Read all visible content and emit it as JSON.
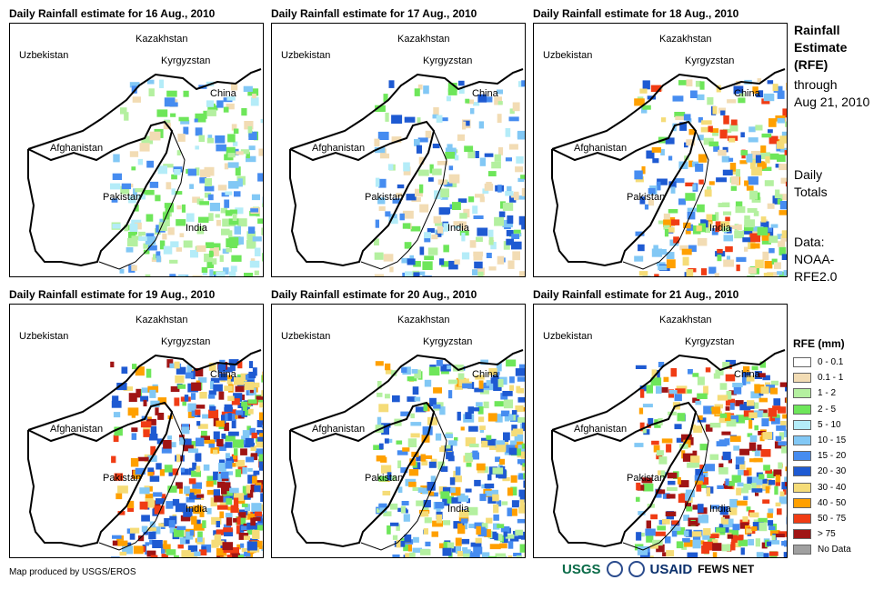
{
  "panels": [
    {
      "title": "Daily Rainfall estimate for 16 Aug., 2010"
    },
    {
      "title": "Daily Rainfall estimate for 17 Aug., 2010"
    },
    {
      "title": "Daily Rainfall estimate for 18 Aug., 2010"
    },
    {
      "title": "Daily Rainfall estimate for 19 Aug., 2010"
    },
    {
      "title": "Daily Rainfall estimate for 20 Aug., 2010"
    },
    {
      "title": "Daily Rainfall estimate for 21 Aug., 2010"
    }
  ],
  "map_labels": {
    "kazakhstan": "Kazakhstan",
    "uzbekistan": "Uzbekistan",
    "kyrgyzstan": "Kyrgyzstan",
    "china": "China",
    "afghanistan": "Afghanistan",
    "pakistan": "Pakistan",
    "india": "India"
  },
  "side": {
    "title_lines": [
      "Rainfall",
      "Estimate",
      "(RFE)"
    ],
    "through_lines": [
      "through",
      "Aug 21, 2010"
    ],
    "daily_lines": [
      "Daily",
      "Totals"
    ],
    "data_lines": [
      "Data:",
      "NOAA-",
      "RFE2.0"
    ]
  },
  "legend": {
    "title": "RFE (mm)",
    "items": [
      {
        "label": "0 - 0.1",
        "color": "#ffffff"
      },
      {
        "label": "0.1 - 1",
        "color": "#f2dcb4"
      },
      {
        "label": "1 - 2",
        "color": "#b4f0a0"
      },
      {
        "label": "2 - 5",
        "color": "#6ee65a"
      },
      {
        "label": "5 - 10",
        "color": "#b4ecf8"
      },
      {
        "label": "10 - 15",
        "color": "#82c8f5"
      },
      {
        "label": "15 - 20",
        "color": "#468cf0"
      },
      {
        "label": "20 - 30",
        "color": "#1e5ad2"
      },
      {
        "label": "30 - 40",
        "color": "#f5dc78"
      },
      {
        "label": "40 - 50",
        "color": "#ffa000"
      },
      {
        "label": "50 - 75",
        "color": "#f03c14"
      },
      {
        "label": "> 75",
        "color": "#a01414"
      },
      {
        "label": "No Data",
        "color": "#a0a0a0"
      }
    ]
  },
  "credit": "Map produced by USGS/EROS",
  "logos": {
    "usgs": "USGS",
    "usaid": "USAID",
    "fews": "FEWS NET"
  }
}
